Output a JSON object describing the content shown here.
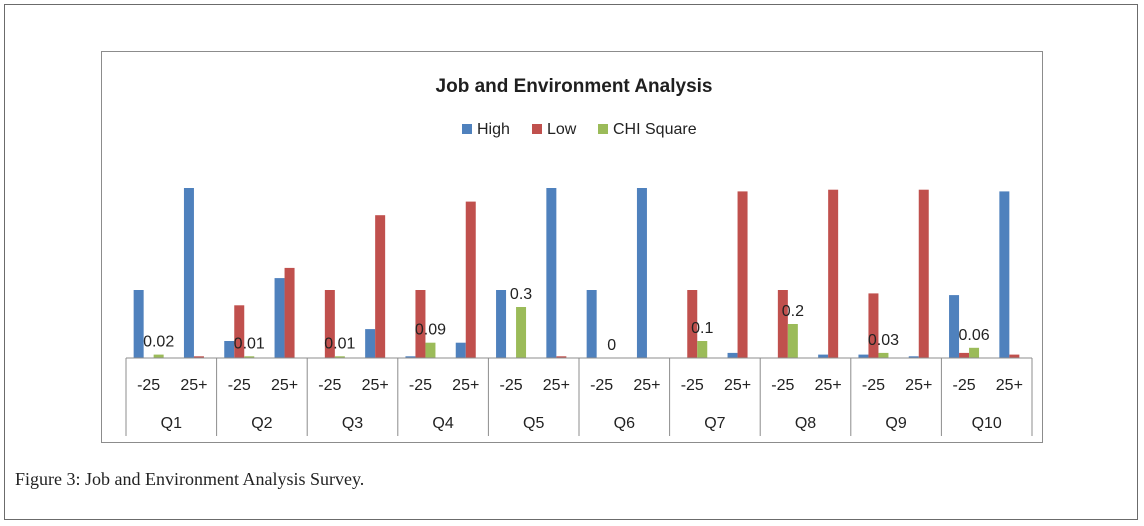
{
  "caption": {
    "label": "Figure 3:",
    "text": " Job and Environment Analysis Survey."
  },
  "chart_data": {
    "type": "bar",
    "title": "Job and Environment Analysis",
    "legend_position": "top",
    "grid": false,
    "groups": [
      "Q1",
      "Q2",
      "Q3",
      "Q4",
      "Q5",
      "Q6",
      "Q7",
      "Q8",
      "Q9",
      "Q10"
    ],
    "subcategories": [
      "-25",
      "25+"
    ],
    "ylim": [
      0,
      1
    ],
    "series": [
      {
        "name": "High",
        "color": "#4f81bd",
        "values": [
          [
            0.4,
            1.0
          ],
          [
            0.1,
            0.47
          ],
          [
            0.0,
            0.17
          ],
          [
            0.01,
            0.09
          ],
          [
            0.4,
            1.0
          ],
          [
            0.4,
            1.0
          ],
          [
            0.0,
            0.03
          ],
          [
            0.0,
            0.02
          ],
          [
            0.02,
            0.01
          ],
          [
            0.37,
            0.98
          ]
        ]
      },
      {
        "name": "Low",
        "color": "#c0504d",
        "values": [
          [
            0.0,
            0.01
          ],
          [
            0.31,
            0.53
          ],
          [
            0.4,
            0.84
          ],
          [
            0.4,
            0.92
          ],
          [
            0.0,
            0.01
          ],
          [
            0.0,
            0.0
          ],
          [
            0.4,
            0.98
          ],
          [
            0.4,
            0.99
          ],
          [
            0.38,
            0.99
          ],
          [
            0.03,
            0.02
          ]
        ]
      },
      {
        "name": "CHI Square",
        "color": "#9bbb59",
        "values": [
          0.02,
          0.01,
          0.01,
          0.09,
          0.3,
          0,
          0.1,
          0.2,
          0.03,
          0.06
        ],
        "labels": [
          "0.02",
          "0.01",
          "0.01",
          "0.09",
          "0.3",
          "0",
          "0.1",
          "0.2",
          "0.03",
          "0.06"
        ]
      }
    ]
  }
}
